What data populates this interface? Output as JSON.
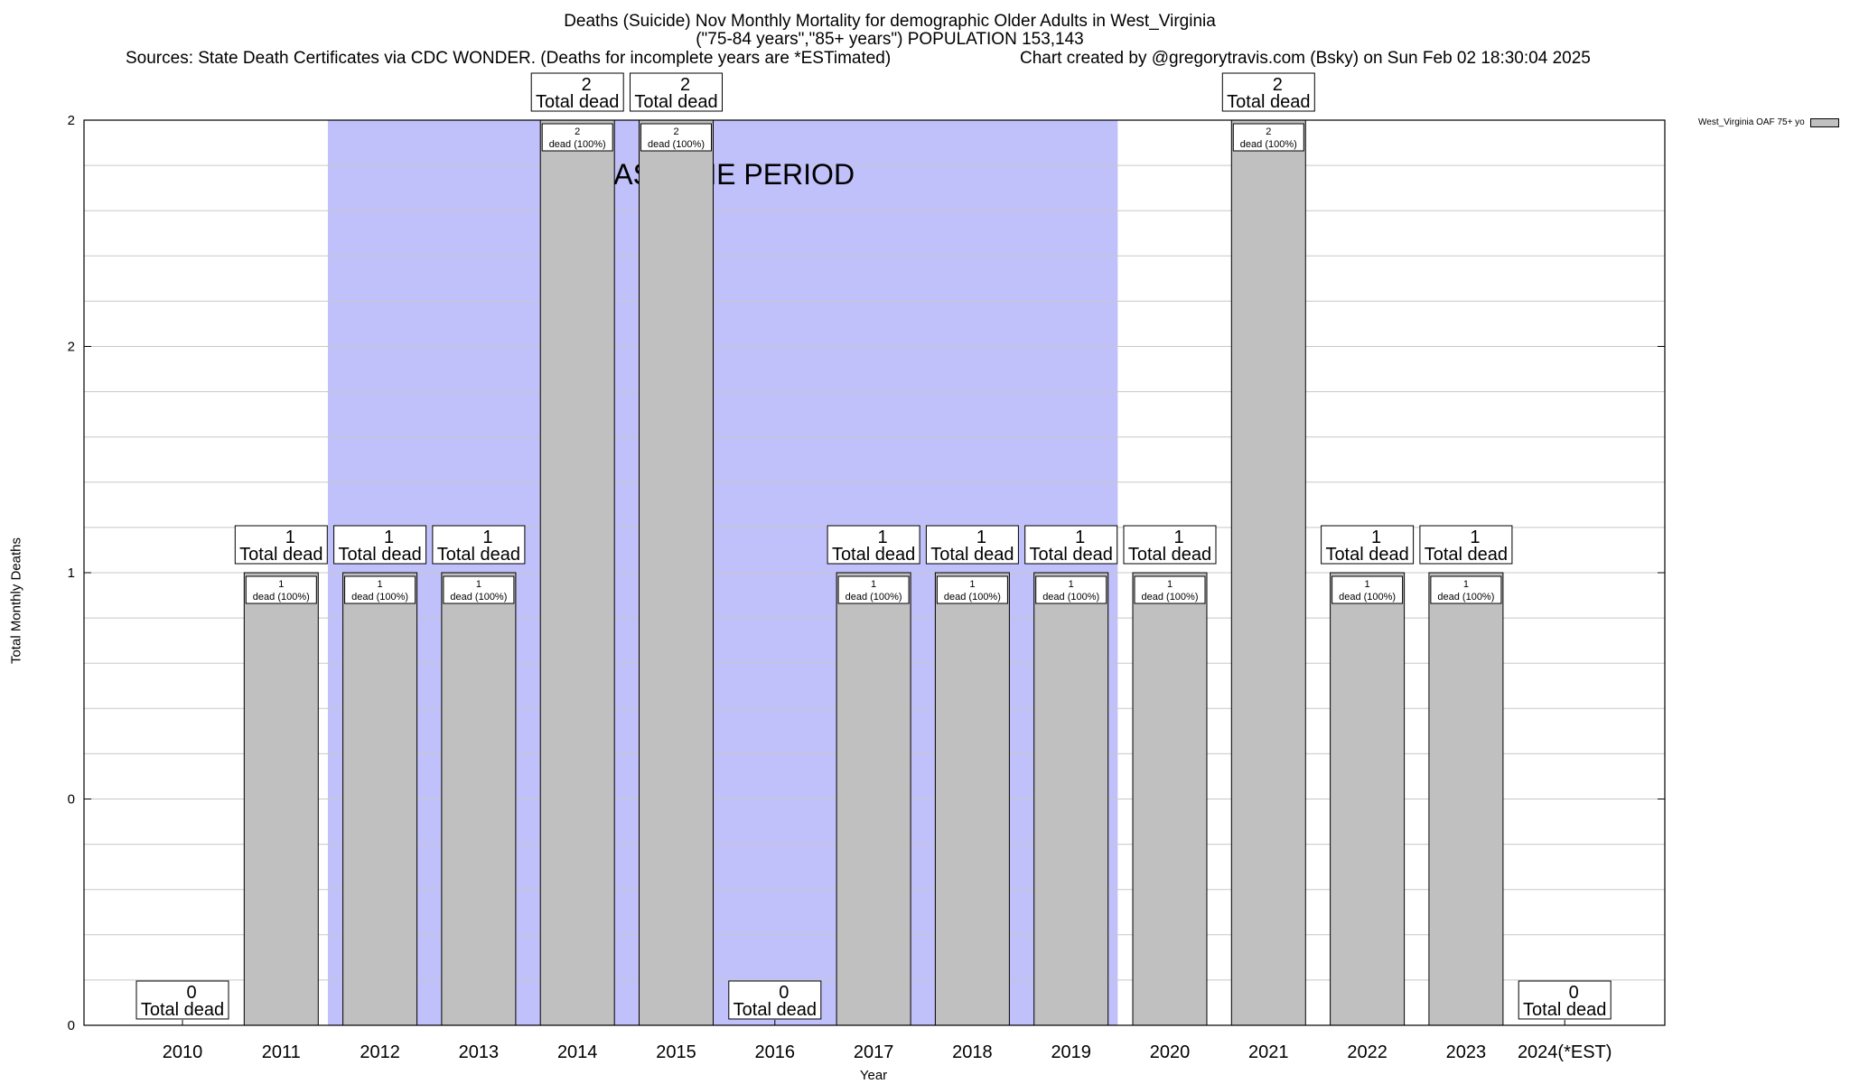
{
  "chart_data": {
    "type": "bar",
    "title_lines": [
      "Deaths (Suicide) Nov Monthly Mortality for demographic Older Adults in West_Virginia",
      "(\"75-84 years\",\"85+ years\") POPULATION 153,143"
    ],
    "sources": "Sources: State Death Certificates via CDC WONDER. (Deaths for incomplete years are *ESTimated)",
    "credit": "Chart created by @gregorytravis.com (Bsky) on Sun Feb 02 18:30:04 2025",
    "xlabel": "Year",
    "ylabel": "Total Monthly Deaths",
    "categories": [
      "2010",
      "2011",
      "2012",
      "2013",
      "2014",
      "2015",
      "2016",
      "2017",
      "2018",
      "2019",
      "2020",
      "2021",
      "2022",
      "2023",
      "2024(*EST)"
    ],
    "series": [
      {
        "name": "West_Virginia OAF 75+ yo",
        "values": [
          0,
          1,
          1,
          1,
          2,
          2,
          0,
          1,
          1,
          1,
          1,
          2,
          1,
          1,
          0
        ]
      }
    ],
    "ylim": [
      0,
      2
    ],
    "y_tick_labels": [
      "0",
      "0",
      "1",
      "2",
      "2"
    ],
    "total_label_suffix": "Total dead",
    "bar_label_suffix": "dead (100%)",
    "baseline_label": "BASELINE PERIOD",
    "baseline_categories": [
      "2012",
      "2019"
    ],
    "grid": true,
    "legend_position": "top-right",
    "colors": {
      "bar": "#c0c0c0",
      "baseline": "#c0c0fa"
    }
  }
}
